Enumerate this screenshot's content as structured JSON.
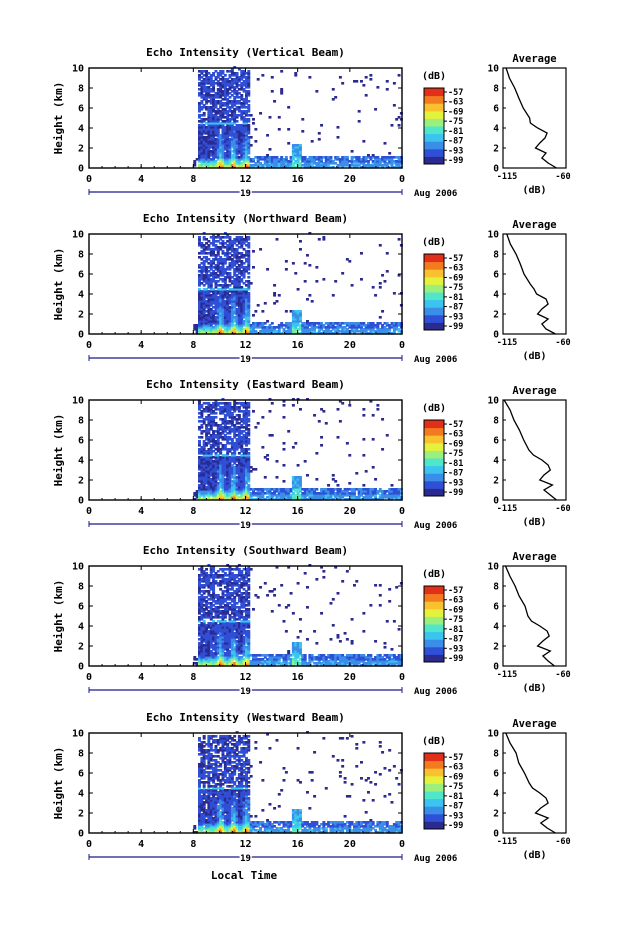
{
  "figure": {
    "xlabel": "Local Time",
    "date_label": "Aug 2006",
    "day_label": "19",
    "cb_label": "(dB)",
    "avg_title": "Average",
    "avg_xlabel": "(dB)"
  },
  "palette": [
    "#2b2a8f",
    "#2f4fd6",
    "#3a8ee8",
    "#3bc4ef",
    "#4fe6c9",
    "#9bf07d",
    "#e4f23c",
    "#f8c12d",
    "#f47a1f",
    "#e0301a"
  ],
  "chart_data": [
    {
      "type": "heatmap",
      "title": "Echo Intensity (Vertical Beam)",
      "ylabel": "Height (km)",
      "xlim": [
        0,
        24
      ],
      "ylim": [
        0,
        10
      ],
      "x_ticks": [
        "0",
        "4",
        "8",
        "12",
        "16",
        "20",
        "0"
      ],
      "y_ticks": [
        "0",
        "2",
        "4",
        "6",
        "8",
        "10"
      ],
      "colorbar_ticks": [
        "-57",
        "-63",
        "-69",
        "-75",
        "-81",
        "-87",
        "-93",
        "-99"
      ],
      "avg_xticks": [
        "-115",
        "-60"
      ],
      "avg_profile": {
        "height": [
          0,
          0.5,
          1,
          1.5,
          2,
          2.5,
          3,
          3.5,
          4,
          4.5,
          5,
          6,
          7,
          8,
          9,
          10
        ],
        "db": [
          -64,
          -72,
          -78,
          -74,
          -84,
          -80,
          -75,
          -73,
          -82,
          -88,
          -90,
          -95,
          -99,
          -103,
          -108,
          -112
        ]
      }
    },
    {
      "type": "heatmap",
      "title": "Echo Intensity (Northward Beam)",
      "ylabel": "Height (km)",
      "xlim": [
        0,
        24
      ],
      "ylim": [
        0,
        10
      ],
      "x_ticks": [
        "0",
        "4",
        "8",
        "12",
        "16",
        "20",
        "0"
      ],
      "y_ticks": [
        "0",
        "2",
        "4",
        "6",
        "8",
        "10"
      ],
      "colorbar_ticks": [
        "-57",
        "-63",
        "-69",
        "-75",
        "-81",
        "-87",
        "-93",
        "-99"
      ],
      "avg_xticks": [
        "-115",
        "-60"
      ],
      "avg_profile": {
        "height": [
          0,
          0.5,
          1,
          1.5,
          2,
          2.5,
          3,
          3.5,
          4,
          4.5,
          5,
          6,
          7,
          8,
          9,
          10
        ],
        "db": [
          -65,
          -74,
          -78,
          -72,
          -82,
          -78,
          -72,
          -74,
          -83,
          -86,
          -90,
          -94,
          -98,
          -103,
          -108,
          -112
        ]
      }
    },
    {
      "type": "heatmap",
      "title": "Echo Intensity (Eastward Beam)",
      "ylabel": "Height (km)",
      "xlim": [
        0,
        24
      ],
      "ylim": [
        0,
        10
      ],
      "x_ticks": [
        "0",
        "4",
        "8",
        "12",
        "16",
        "20",
        "0"
      ],
      "y_ticks": [
        "0",
        "2",
        "4",
        "6",
        "8",
        "10"
      ],
      "colorbar_ticks": [
        "-57",
        "-63",
        "-69",
        "-75",
        "-81",
        "-87",
        "-93",
        "-99"
      ],
      "avg_xticks": [
        "-115",
        "-60"
      ],
      "avg_profile": {
        "height": [
          0,
          0.5,
          1,
          1.5,
          2,
          2.5,
          3,
          3.5,
          4,
          4.5,
          5,
          6,
          7,
          8,
          9,
          10
        ],
        "db": [
          -64,
          -70,
          -76,
          -68,
          -80,
          -76,
          -70,
          -72,
          -78,
          -86,
          -90,
          -95,
          -100,
          -104,
          -109,
          -113
        ]
      }
    },
    {
      "type": "heatmap",
      "title": "Echo Intensity (Southward Beam)",
      "ylabel": "Height (km)",
      "xlim": [
        0,
        24
      ],
      "ylim": [
        0,
        10
      ],
      "x_ticks": [
        "0",
        "4",
        "8",
        "12",
        "16",
        "20",
        "0"
      ],
      "y_ticks": [
        "0",
        "2",
        "4",
        "6",
        "8",
        "10"
      ],
      "colorbar_ticks": [
        "-57",
        "-63",
        "-69",
        "-75",
        "-81",
        "-87",
        "-93",
        "-99"
      ],
      "avg_xticks": [
        "-115",
        "-60"
      ],
      "avg_profile": {
        "height": [
          0,
          0.5,
          1,
          1.5,
          2,
          2.5,
          3,
          3.5,
          4,
          4.5,
          5,
          6,
          7,
          8,
          9,
          10
        ],
        "db": [
          -66,
          -72,
          -77,
          -70,
          -82,
          -77,
          -71,
          -73,
          -80,
          -87,
          -91,
          -95,
          -99,
          -104,
          -108,
          -112
        ]
      }
    },
    {
      "type": "heatmap",
      "title": "Echo Intensity (Westward Beam)",
      "ylabel": "Height (km)",
      "xlim": [
        0,
        24
      ],
      "ylim": [
        0,
        10
      ],
      "x_ticks": [
        "0",
        "4",
        "8",
        "12",
        "16",
        "20",
        "0"
      ],
      "y_ticks": [
        "0",
        "2",
        "4",
        "6",
        "8",
        "10"
      ],
      "colorbar_ticks": [
        "-57",
        "-63",
        "-69",
        "-75",
        "-81",
        "-87",
        "-93",
        "-99"
      ],
      "avg_xticks": [
        "-115",
        "-60"
      ],
      "avg_profile": {
        "height": [
          0,
          0.5,
          1,
          1.5,
          2,
          2.5,
          3,
          3.5,
          4,
          4.5,
          5,
          6,
          7,
          8,
          9,
          10
        ],
        "db": [
          -65,
          -73,
          -79,
          -72,
          -84,
          -79,
          -72,
          -74,
          -80,
          -86,
          -90,
          -95,
          -99,
          -103,
          -108,
          -112
        ]
      }
    }
  ]
}
